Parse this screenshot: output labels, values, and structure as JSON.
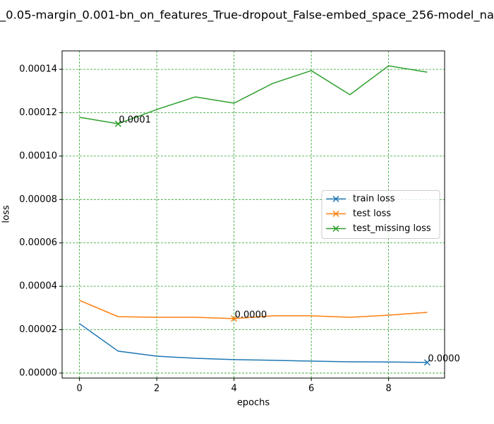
{
  "chart_data": {
    "type": "line",
    "title": "_0.05-margin_0.001-bn_on_features_True-dropout_False-embed_space_256-model_na",
    "x_label": "epochs",
    "y_label": "loss",
    "x": [
      0,
      1,
      2,
      3,
      4,
      5,
      6,
      7,
      8,
      9
    ],
    "series": [
      {
        "name": "train loss",
        "color": "#1f77b4",
        "values": [
          2.28e-05,
          1.01e-05,
          7.8e-06,
          6.8e-06,
          6.2e-06,
          5.9e-06,
          5.5e-06,
          5.2e-06,
          5.1e-06,
          4.9e-06
        ],
        "value_labels": [
          null,
          null,
          null,
          null,
          null,
          null,
          null,
          null,
          null,
          "0.0000"
        ]
      },
      {
        "name": "test loss",
        "color": "#ff7f0e",
        "values": [
          3.35e-05,
          2.6e-05,
          2.57e-05,
          2.57e-05,
          2.51e-05,
          2.64e-05,
          2.64e-05,
          2.57e-05,
          2.67e-05,
          2.8e-05
        ],
        "value_labels": [
          null,
          null,
          null,
          null,
          "0.0000",
          null,
          null,
          null,
          null,
          null
        ]
      },
      {
        "name": "test_missing loss",
        "color": "#2ca02c",
        "values": [
          0.0001179,
          0.0001149,
          0.0001215,
          0.0001273,
          0.0001244,
          0.0001335,
          0.0001394,
          0.0001283,
          0.0001416,
          0.0001387
        ],
        "value_labels": [
          null,
          "0.0001",
          null,
          null,
          null,
          null,
          null,
          null,
          null,
          null
        ]
      }
    ],
    "xlim": [
      -0.45,
      9.45
    ],
    "xticks": [
      0,
      2,
      4,
      6,
      8
    ],
    "ylim": [
      -2.3e-06,
      0.0001485
    ],
    "yticks": [
      {
        "value": 0,
        "label": "0.00000"
      },
      2e-05,
      4e-05,
      6e-05,
      8e-05,
      {
        "value": 0.0001,
        "label": "0.00010"
      },
      0.00012,
      0.00014
    ],
    "grid": true,
    "grid_color": "#2ca02c",
    "legend": "center right"
  }
}
